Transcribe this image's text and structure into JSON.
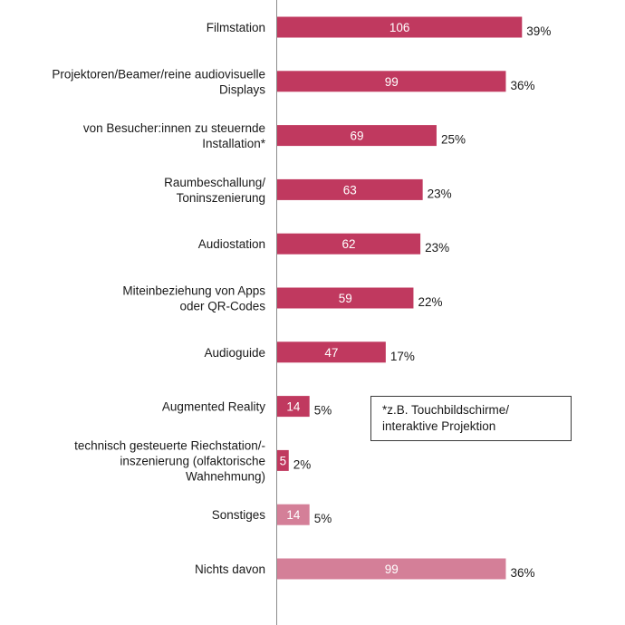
{
  "chart_data": {
    "type": "bar",
    "orientation": "horizontal",
    "categories": [
      [
        "Filmstation"
      ],
      [
        "Projektoren/Beamer/reine audiovisuelle",
        "Displays"
      ],
      [
        "von Besucher:innen zu steuernde",
        "Installation*"
      ],
      [
        "Raumbeschallung/",
        "Toninszenierung"
      ],
      [
        "Audiostation"
      ],
      [
        "Miteinbeziehung von Apps",
        "oder QR-Codes"
      ],
      [
        "Audioguide"
      ],
      [
        "Augmented Reality"
      ],
      [
        "technisch gesteuerte Riechstation/-",
        "inszenierung (olfaktorische",
        "Wahnehmung)"
      ],
      [
        "Sonstiges"
      ],
      [
        "Nichts davon"
      ]
    ],
    "values": [
      106,
      99,
      69,
      63,
      62,
      59,
      47,
      14,
      5,
      14,
      99
    ],
    "percent_labels": [
      "39%",
      "36%",
      "25%",
      "23%",
      "23%",
      "22%",
      "17%",
      "5%",
      "2%",
      "5%",
      "36%"
    ],
    "bar_colors": [
      "#c0395f",
      "#c0395f",
      "#c0395f",
      "#c0395f",
      "#c0395f",
      "#c0395f",
      "#c0395f",
      "#c0395f",
      "#c0395f",
      "#d47f98",
      "#d47f98"
    ],
    "xlim": [
      0,
      135
    ],
    "grid": false,
    "title": "",
    "xlabel": "",
    "ylabel": ""
  },
  "note": {
    "lines": [
      "*z.B. Touchbildschirme/",
      "interaktive Projektion"
    ]
  }
}
